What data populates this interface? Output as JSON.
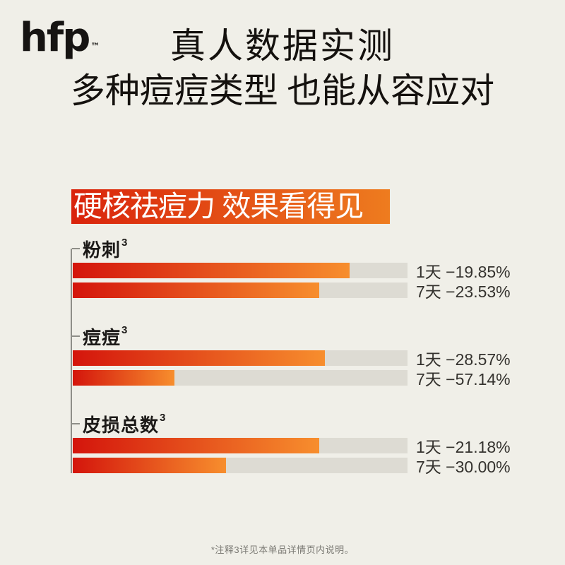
{
  "page": {
    "background": "#f0efe8"
  },
  "logo": {
    "text": "hfp",
    "trademark": "™"
  },
  "header": {
    "line1": "真人数据实测",
    "line2": "多种痘痘类型 也能从容应对"
  },
  "banner": {
    "text": "硬核祛痘力 效果看得见",
    "gradient_left": "#d9230c",
    "gradient_right": "#ee7c1f",
    "text_color": "#ffffff"
  },
  "chart_data": {
    "type": "bar",
    "orientation": "horizontal",
    "title": "硬核祛痘力 效果看得见",
    "value_unit": "percent_change",
    "xlim": [
      0,
      100
    ],
    "grid": false,
    "legend": "none",
    "bar_gradient": [
      "#d4150c",
      "#f78e2d"
    ],
    "track_color": "#dddbd3",
    "axis_line_color": "#8e8e88",
    "groups": [
      {
        "name": "粉刺",
        "sup": "3",
        "bars": [
          {
            "period": "1天",
            "change": "−19.85%",
            "value": -19.85,
            "fill_pct": 82.7
          },
          {
            "period": "7天",
            "change": "−23.53%",
            "value": -23.53,
            "fill_pct": 73.6
          }
        ]
      },
      {
        "name": "痘痘",
        "sup": "3",
        "bars": [
          {
            "period": "1天",
            "change": "−28.57%",
            "value": -28.57,
            "fill_pct": 75.3
          },
          {
            "period": "7天",
            "change": "−57.14%",
            "value": -57.14,
            "fill_pct": 30.4
          }
        ]
      },
      {
        "name": "皮损总数",
        "sup": "3",
        "bars": [
          {
            "period": "1天",
            "change": "−21.18%",
            "value": -21.18,
            "fill_pct": 73.6
          },
          {
            "period": "7天",
            "change": "−30.00%",
            "value": -30.0,
            "fill_pct": 45.8
          }
        ]
      }
    ]
  },
  "footnote": {
    "text": "*注释3详见本单品详情页内说明。"
  }
}
